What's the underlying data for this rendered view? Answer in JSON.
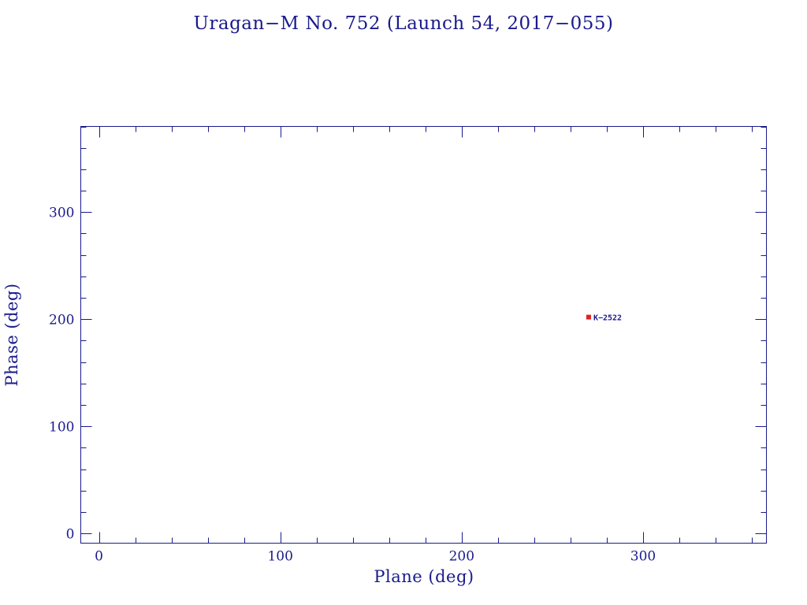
{
  "chart_data": {
    "type": "scatter",
    "title": "Uragan−M No. 752 (Launch 54, 2017−055)",
    "xlabel": "Plane (deg)",
    "ylabel": "Phase (deg)",
    "xlim": [
      -10,
      368
    ],
    "ylim": [
      -9,
      380
    ],
    "x_ticks": {
      "major": [
        0,
        100,
        200,
        300
      ],
      "major_labels": [
        "0",
        "100",
        "200",
        "300"
      ],
      "minor_step": 20
    },
    "y_ticks": {
      "major": [
        0,
        100,
        200,
        300
      ],
      "major_labels": [
        "0",
        "100",
        "200",
        "300"
      ],
      "minor_step": 20
    },
    "grid": false,
    "colors": {
      "axes": "#1a1a8c",
      "point": "#e02020",
      "point_label": "#1a1a8c",
      "background": "#ffffff"
    },
    "points": [
      {
        "x": 270,
        "y": 202,
        "label": "K−2522"
      }
    ]
  }
}
